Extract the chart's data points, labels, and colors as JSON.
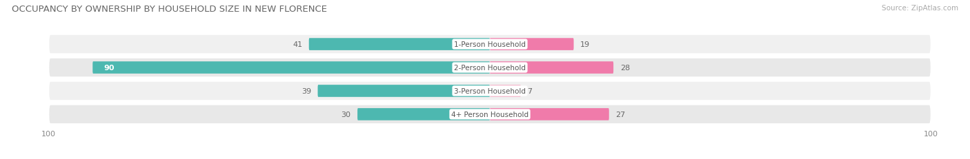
{
  "title": "OCCUPANCY BY OWNERSHIP BY HOUSEHOLD SIZE IN NEW FLORENCE",
  "source": "Source: ZipAtlas.com",
  "categories": [
    "1-Person Household",
    "2-Person Household",
    "3-Person Household",
    "4+ Person Household"
  ],
  "owner_values": [
    41,
    90,
    39,
    30
  ],
  "renter_values": [
    19,
    28,
    7,
    27
  ],
  "owner_color": "#4db8b0",
  "renter_color": "#f07baa",
  "renter_color_light": "#f5b8cc",
  "row_bg_colors": [
    "#f0f0f0",
    "#e8e8e8",
    "#f0f0f0",
    "#e8e8e8"
  ],
  "axis_max": 100,
  "bar_height": 0.52,
  "title_fontsize": 9.5,
  "label_fontsize": 8,
  "tick_fontsize": 8,
  "source_fontsize": 7.5,
  "figsize": [
    14.06,
    2.32
  ],
  "dpi": 100
}
